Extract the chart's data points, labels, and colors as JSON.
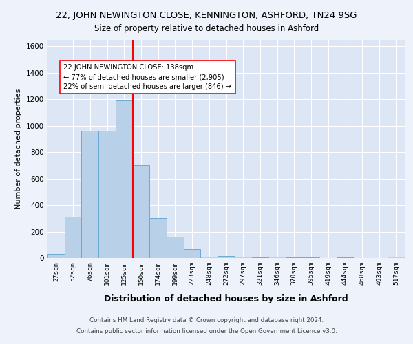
{
  "title": "22, JOHN NEWINGTON CLOSE, KENNINGTON, ASHFORD, TN24 9SG",
  "subtitle": "Size of property relative to detached houses in Ashford",
  "xlabel": "Distribution of detached houses by size in Ashford",
  "ylabel": "Number of detached properties",
  "bins": [
    "27sqm",
    "52sqm",
    "76sqm",
    "101sqm",
    "125sqm",
    "150sqm",
    "174sqm",
    "199sqm",
    "223sqm",
    "248sqm",
    "272sqm",
    "297sqm",
    "321sqm",
    "346sqm",
    "370sqm",
    "395sqm",
    "419sqm",
    "444sqm",
    "468sqm",
    "493sqm",
    "517sqm"
  ],
  "values": [
    30,
    310,
    960,
    960,
    1190,
    700,
    300,
    160,
    70,
    10,
    15,
    10,
    5,
    10,
    5,
    5,
    0,
    3,
    0,
    0,
    10
  ],
  "bar_color": "#b8d0e8",
  "bar_edge_color": "#6aaad4",
  "property_line_color": "red",
  "property_line_bin": 4.5,
  "annotation_text": "22 JOHN NEWINGTON CLOSE: 138sqm\n← 77% of detached houses are smaller (2,905)\n22% of semi-detached houses are larger (846) →",
  "annotation_box_color": "white",
  "annotation_box_edge": "red",
  "ylim": [
    0,
    1650
  ],
  "yticks": [
    0,
    200,
    400,
    600,
    800,
    1000,
    1200,
    1400,
    1600
  ],
  "footer1": "Contains HM Land Registry data © Crown copyright and database right 2024.",
  "footer2": "Contains public sector information licensed under the Open Government Licence v3.0.",
  "bg_color": "#eef2fb",
  "plot_bg_color": "#dce6f5"
}
